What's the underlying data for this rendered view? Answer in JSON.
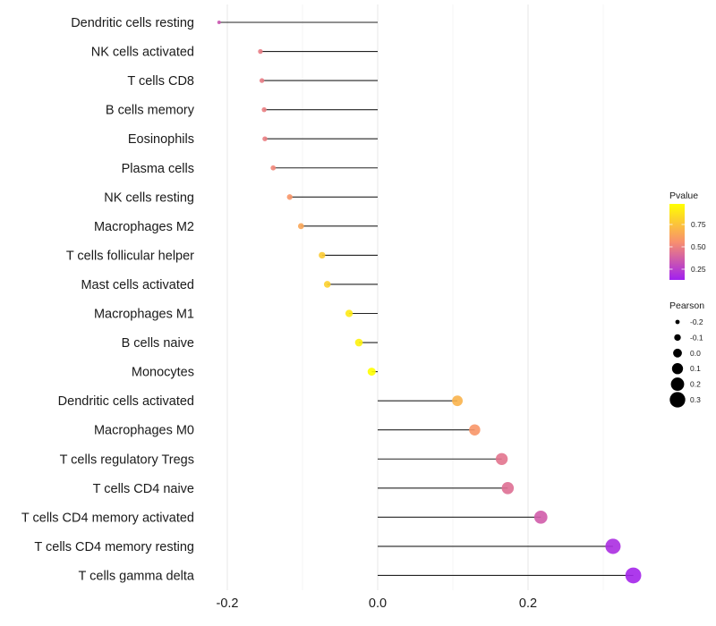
{
  "chart_data": {
    "type": "lollipop",
    "title": "",
    "xlabel": "",
    "ylabel": "",
    "xlim": [
      -0.2,
      0.35
    ],
    "x_ticks": [
      -0.2,
      0.0,
      0.2
    ],
    "x_tick_labels": [
      "-0.2",
      "0.0",
      "0.2"
    ],
    "grid": true,
    "baseline": 0.0,
    "categories": [
      "Dendritic cells resting",
      "NK cells activated",
      "T cells CD8",
      "B cells memory",
      "Eosinophils",
      "Plasma cells",
      "NK cells resting",
      "Macrophages M2",
      "T cells follicular helper",
      "Mast cells activated",
      "Macrophages M1",
      "B cells naive",
      "Monocytes",
      "Dendritic cells activated",
      "Macrophages M0",
      "T cells regulatory  Tregs ",
      "T cells CD4 naive",
      "T cells CD4 memory activated",
      "T cells CD4 memory resting",
      "T cells gamma delta"
    ],
    "pearson": [
      -0.211,
      -0.156,
      -0.154,
      -0.151,
      -0.15,
      -0.139,
      -0.117,
      -0.102,
      -0.074,
      -0.067,
      -0.038,
      -0.025,
      -0.008,
      0.106,
      0.129,
      0.165,
      0.173,
      0.217,
      0.313,
      0.34
    ],
    "pvalue": [
      0.34,
      0.48,
      0.48,
      0.49,
      0.49,
      0.52,
      0.58,
      0.64,
      0.78,
      0.8,
      0.9,
      0.93,
      0.98,
      0.69,
      0.58,
      0.45,
      0.43,
      0.36,
      0.18,
      0.15
    ],
    "legends": {
      "color": {
        "title": "Pvalue",
        "ticks": [
          0.25,
          0.5,
          0.75
        ],
        "tick_labels": [
          "0.25",
          "0.50",
          "0.75"
        ],
        "range": [
          0.13,
          0.98
        ],
        "low_color": "#A020F0",
        "high_color": "#FFFF00",
        "placement": "right"
      },
      "size": {
        "title": "Pearson",
        "breaks": [
          -0.2,
          -0.1,
          0.0,
          0.1,
          0.2,
          0.3
        ],
        "labels": [
          "-0.2",
          "-0.1",
          "0.0",
          "0.1",
          "0.2",
          "0.3"
        ],
        "placement": "right"
      }
    }
  }
}
